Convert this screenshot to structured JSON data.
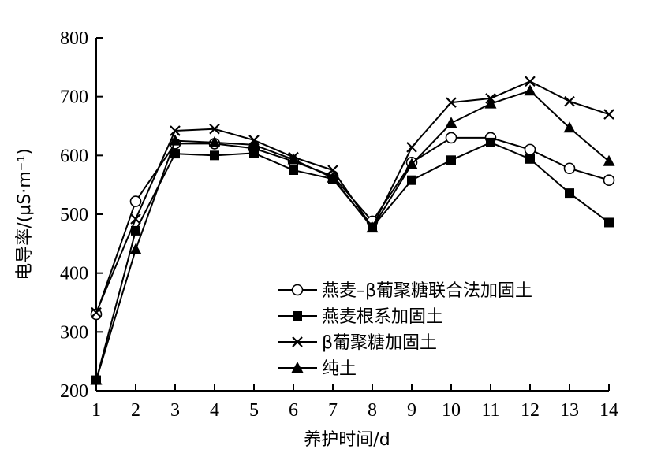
{
  "chart_data": {
    "type": "line",
    "title": "",
    "xlabel": "养护时间/d",
    "ylabel": "电导率/(μS·m⁻¹)",
    "xlim": [
      1,
      14
    ],
    "ylim": [
      200,
      800
    ],
    "x": [
      1,
      2,
      3,
      4,
      5,
      6,
      7,
      8,
      9,
      10,
      11,
      12,
      13,
      14
    ],
    "x_ticks": [
      "1",
      "2",
      "3",
      "4",
      "5",
      "6",
      "7",
      "8",
      "9",
      "10",
      "11",
      "12",
      "13",
      "14"
    ],
    "y_ticks": [
      "200",
      "300",
      "400",
      "500",
      "600",
      "700",
      "800"
    ],
    "y_tick_values": [
      200,
      300,
      400,
      500,
      600,
      700,
      800
    ],
    "grid": false,
    "legend_position": "bottom-right",
    "series": [
      {
        "name": "燕麦–β葡聚糖联合法加固土",
        "marker": "circle-open",
        "color": "#000000",
        "values": [
          330,
          522,
          620,
          620,
          612,
          590,
          565,
          488,
          588,
          630,
          630,
          610,
          578,
          558
        ]
      },
      {
        "name": "燕麦根系加固土",
        "marker": "square-filled",
        "color": "#000000",
        "values": [
          218,
          472,
          603,
          600,
          604,
          575,
          560,
          478,
          558,
          592,
          622,
          594,
          536,
          486
        ]
      },
      {
        "name": "β葡聚糖加固土",
        "marker": "x",
        "color": "#000000",
        "values": [
          333,
          492,
          642,
          645,
          626,
          597,
          575,
          478,
          614,
          690,
          697,
          726,
          692,
          670
        ]
      },
      {
        "name": "纯土",
        "marker": "triangle-filled",
        "color": "#000000",
        "values": [
          218,
          440,
          625,
          622,
          618,
          593,
          562,
          477,
          585,
          655,
          688,
          710,
          647,
          590
        ]
      }
    ]
  }
}
